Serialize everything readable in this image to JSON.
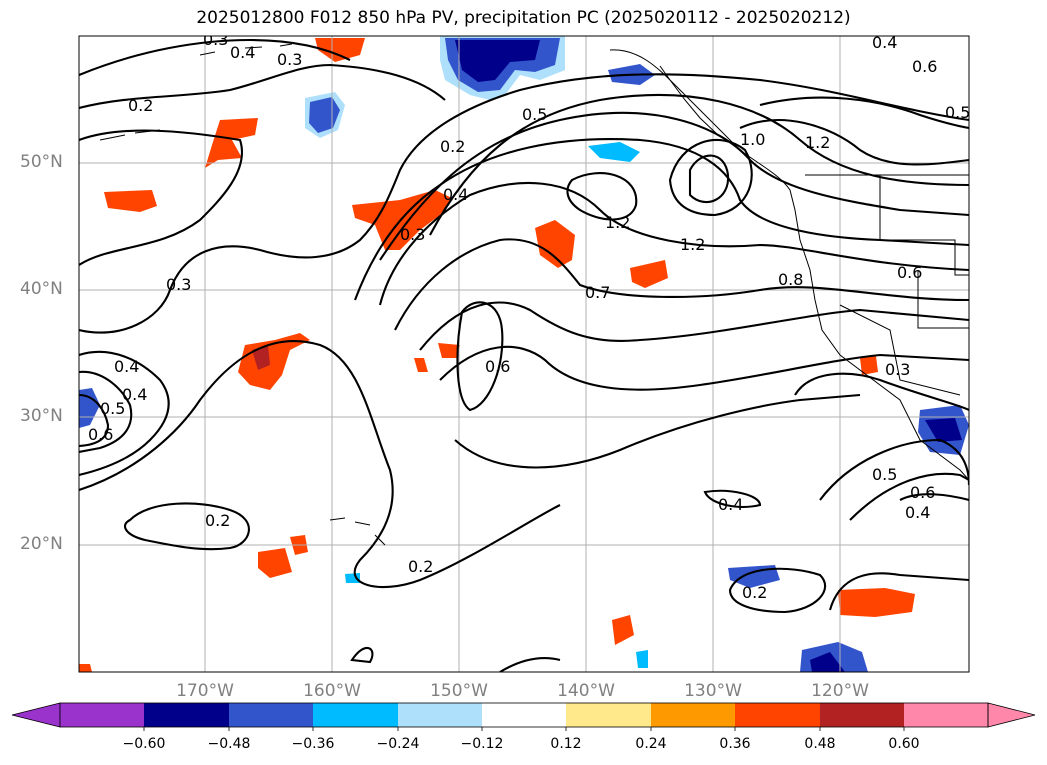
{
  "title": "2025012800 F012 850 hPa PV, precipitation PC (2025020112 - 2025020212)",
  "map": {
    "lat_labels": [
      "50°N",
      "40°N",
      "30°N",
      "20°N"
    ],
    "lon_labels": [
      "170°W",
      "160°W",
      "150°W",
      "140°W",
      "130°W",
      "120°W"
    ],
    "contour_labels": [
      "0.3",
      "0.4",
      "0.3",
      "0.2",
      "0.2",
      "0.5",
      "0.4",
      "1.2",
      "1.2",
      "1.2",
      "1.0",
      "0.3",
      "0.4",
      "0.3",
      "0.7",
      "0.8",
      "0.6",
      "0.3",
      "0.4",
      "0.6",
      "0.6",
      "0.5",
      "0.6",
      "0.4",
      "0.4",
      "0.2",
      "0.2",
      "0.5",
      "0.2",
      "0.4",
      "0.6",
      "0.5"
    ],
    "colors": {
      "contour": "#000000",
      "grid": "#b0b0b0",
      "coast": "#000000"
    }
  },
  "colorbar": {
    "ticks": [
      "−0.60",
      "−0.48",
      "−0.36",
      "−0.24",
      "−0.12",
      "0.12",
      "0.24",
      "0.36",
      "0.48",
      "0.60"
    ],
    "colors": [
      "#9933cc",
      "#00008b",
      "#3355cc",
      "#00bbff",
      "#aee0fb",
      "#ffffff",
      "#ffe98a",
      "#ff9900",
      "#ff4400",
      "#b22222",
      "#ff88aa"
    ]
  }
}
